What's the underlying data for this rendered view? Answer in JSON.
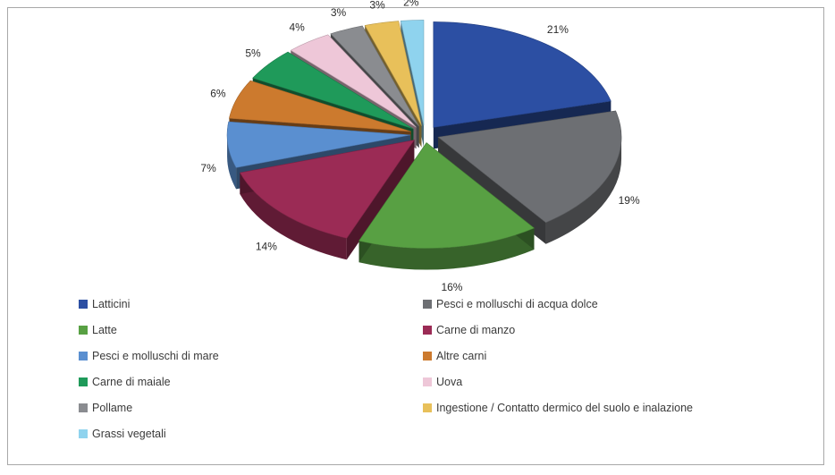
{
  "chart_data": {
    "type": "pie",
    "categories": [
      "Latticini",
      "Pesci e molluschi di acqua dolce",
      "Latte",
      "Carne di manzo",
      "Pesci e molluschi di mare",
      "Altre carni",
      "Carne di maiale",
      "Uova",
      "Pollame",
      "Ingestione / Contatto dermico del suolo e inalazione",
      "Grassi vegetali"
    ],
    "values": [
      21,
      19,
      16,
      14,
      7,
      6,
      5,
      4,
      3,
      3,
      2
    ],
    "labels": [
      "21%",
      "19%",
      "16%",
      "14%",
      "7%",
      "6%",
      "5%",
      "4%",
      "3%",
      "3%",
      "2%"
    ],
    "colors": [
      "#2c4fa3",
      "#6d6f73",
      "#58a043",
      "#9b2b55",
      "#5a8fd0",
      "#cc7a2e",
      "#1f9a5a",
      "#eec7d8",
      "#8a8c90",
      "#e8c05a",
      "#8fd3ee"
    ],
    "legend_position": "bottom",
    "exploded": true,
    "style": "3d"
  }
}
